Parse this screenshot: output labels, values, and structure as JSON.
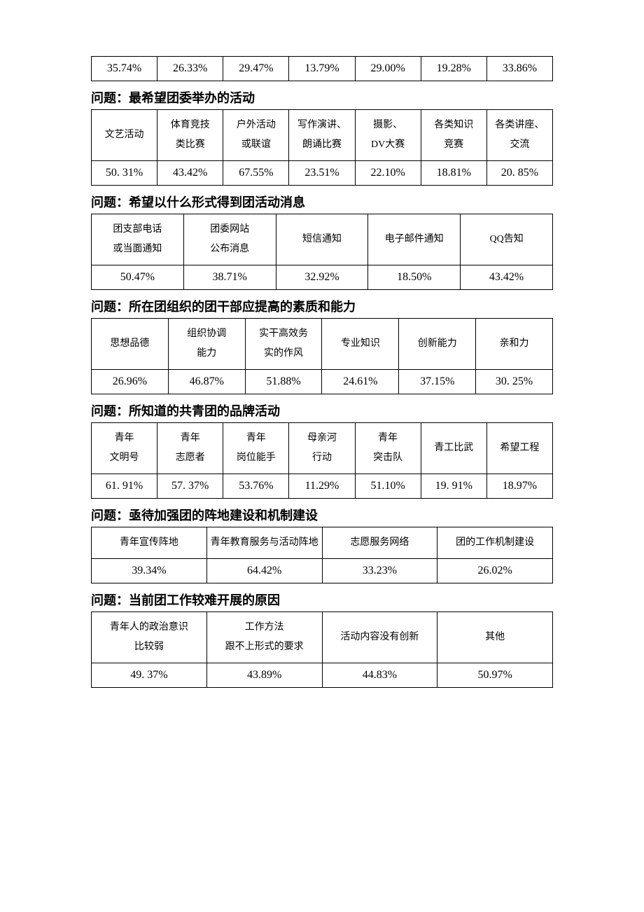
{
  "table0": {
    "values": [
      "35.74%",
      "26.33%",
      "29.47%",
      "13.79%",
      "29.00%",
      "19.28%",
      "33.86%"
    ]
  },
  "sections": [
    {
      "question": "问题：最希望团委举办的活动",
      "headers": [
        "文艺活动",
        "体育竞技\n类比赛",
        "户外活动\n或联谊",
        "写作演讲、\n朗诵比赛",
        "摄影、\nDV大赛",
        "各类知识\n竞赛",
        "各类讲座、\n交流"
      ],
      "values": [
        "50. 31%",
        "43.42%",
        "67.55%",
        "23.51%",
        "22.10%",
        "18.81%",
        "20. 85%"
      ]
    },
    {
      "question": "问题：希望以什么形式得到团活动消息",
      "headers": [
        "团支部电话\n或当面通知",
        "团委网站\n公布消息",
        "短信通知",
        "电子邮件通知",
        "QQ告知"
      ],
      "values": [
        "50.47%",
        "38.71%",
        "32.92%",
        "18.50%",
        "43.42%"
      ]
    },
    {
      "question": "问题：所在团组织的团干部应提高的素质和能力",
      "headers": [
        "思想品德",
        "组织协调\n能力",
        "实干高效务\n实的作风",
        "专业知识",
        "创新能力",
        "亲和力"
      ],
      "values": [
        "26.96%",
        "46.87%",
        "51.88%",
        "24.61%",
        "37.15%",
        "30. 25%"
      ]
    },
    {
      "question": "问题：所知道的共青团的品牌活动",
      "headers": [
        "青年\n文明号",
        "青年\n志愿者",
        "青年\n岗位能手",
        "母亲河\n行动",
        "青年\n突击队",
        "青工比武",
        "希望工程"
      ],
      "values": [
        "61. 91%",
        "57. 37%",
        "53.76%",
        "11.29%",
        "51.10%",
        "19. 91%",
        "18.97%"
      ]
    },
    {
      "question": "问题：亟待加强团的阵地建设和机制建设",
      "headers": [
        "青年宣传阵地",
        "青年教育服务与活动阵地",
        "志愿服务网络",
        "团的工作机制建设"
      ],
      "values": [
        "39.34%",
        "64.42%",
        "33.23%",
        "26.02%"
      ]
    },
    {
      "question": "问题：当前团工作较难开展的原因",
      "headers": [
        "青年人的政治意识\n比较弱",
        "工作方法\n跟不上形式的要求",
        "活动内容没有创新",
        "其他"
      ],
      "values": [
        "49. 37%",
        "43.89%",
        "44.83%",
        "50.97%"
      ]
    }
  ]
}
